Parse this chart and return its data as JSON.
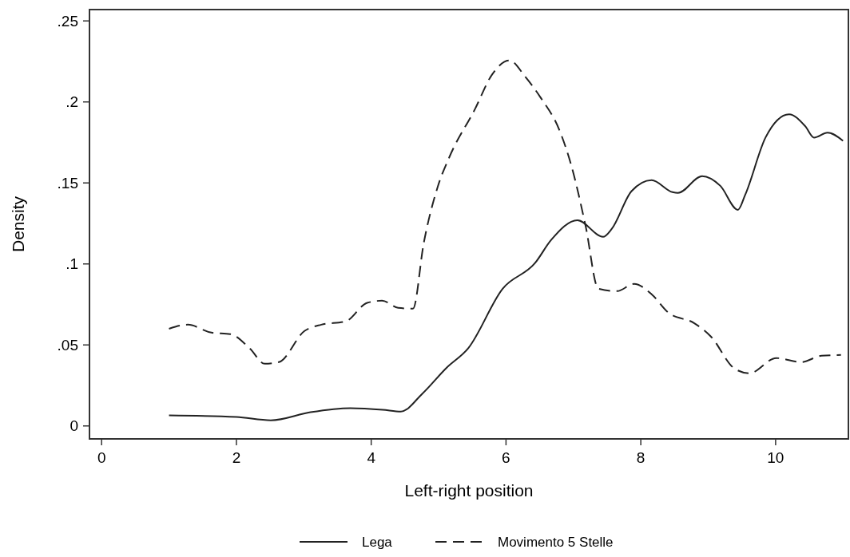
{
  "chart_data": {
    "type": "line",
    "xlabel": "Left-right position",
    "ylabel": "Density",
    "xlim": [
      -0.18,
      11.08
    ],
    "ylim": [
      -0.008,
      0.257
    ],
    "xticks": [
      0,
      2,
      4,
      6,
      8,
      10
    ],
    "yticks": [
      0,
      {
        "value": 0.05,
        "label": ".05"
      },
      {
        "value": 0.1,
        "label": ".1"
      },
      {
        "value": 0.15,
        "label": ".15"
      },
      {
        "value": 0.2,
        "label": ".2"
      },
      {
        "value": 0.25,
        "label": ".25"
      }
    ],
    "grid": false,
    "legend": "bottom",
    "marker": "none",
    "series": [
      {
        "name": "Lega",
        "color": "#222222",
        "line_style": "solid",
        "x": [
          1,
          2,
          2.51,
          3.1,
          3.69,
          4.17,
          4.44,
          4.76,
          5.12,
          5.44,
          5.95,
          6.43,
          6.67,
          7.06,
          7.44,
          7.57,
          7.86,
          8.16,
          8.47,
          8.55,
          8.91,
          9.18,
          9.44,
          9.55,
          9.85,
          10.2,
          10.44,
          10.57,
          10.77,
          11
        ],
        "values": [
          0.0065,
          0.0055,
          0.0035,
          0.0085,
          0.011,
          0.01,
          0.0089,
          0.02,
          0.036,
          0.048,
          0.0847,
          0.1005,
          0.1148,
          0.127,
          0.1167,
          0.1217,
          0.1448,
          0.1517,
          0.1443,
          0.1438,
          0.1542,
          0.1482,
          0.1334,
          0.1428,
          0.178,
          0.1924,
          0.185,
          0.178,
          0.181,
          0.176
        ]
      },
      {
        "name": "Movimento 5 Stelle",
        "color": "#222222",
        "line_style": "dashed",
        "x": [
          1,
          1.28,
          1.63,
          1.91,
          2.2,
          2.42,
          2.63,
          3.01,
          3.26,
          3.62,
          3.94,
          4.16,
          4.4,
          4.62,
          4.78,
          4.99,
          5.16,
          5.54,
          5.79,
          6.05,
          6.29,
          6.51,
          6.8,
          6.97,
          7.18,
          7.37,
          7.65,
          7.9,
          8.16,
          8.41,
          8.79,
          9.04,
          9.39,
          9.61,
          10.01,
          10.38,
          10.68,
          10.97
        ],
        "values": [
          0.06,
          0.0625,
          0.0576,
          0.0567,
          0.0478,
          0.0384,
          0.0394,
          0.0586,
          0.0625,
          0.0645,
          0.076,
          0.0773,
          0.0729,
          0.0724,
          0.113,
          0.148,
          0.166,
          0.1956,
          0.2167,
          0.2256,
          0.2153,
          0.2029,
          0.1818,
          0.1606,
          0.1236,
          0.0847,
          0.0832,
          0.0877,
          0.0813,
          0.0699,
          0.0635,
          0.0552,
          0.0354,
          0.0325,
          0.0419,
          0.0394,
          0.0433,
          0.0438
        ]
      }
    ]
  }
}
